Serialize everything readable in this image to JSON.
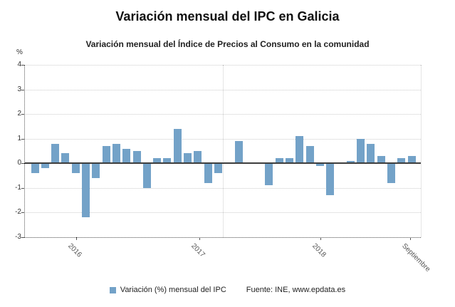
{
  "chart_data": {
    "type": "bar",
    "title": "Variación mensual del IPC en Galicia",
    "subtitle": "Variación mensual del Índice de Precios al Consumo en la comunidad",
    "ylabel": "%",
    "xlabel": "",
    "ylim": [
      -3,
      4
    ],
    "y_ticks": [
      4,
      3,
      2,
      1,
      0,
      -1,
      -2,
      -3
    ],
    "grid": true,
    "legend_position": "bottom",
    "x_tick_labels": [
      "2016",
      "2017",
      "2018",
      "Septiembre"
    ],
    "series": [
      {
        "name": "Variación (%) mensual del IPC",
        "color": "#73a2c8",
        "months": [
          "2015-08",
          "2015-09",
          "2015-10",
          "2015-11",
          "2015-12",
          "2016-01",
          "2016-02",
          "2016-03",
          "2016-04",
          "2016-05",
          "2016-06",
          "2016-07",
          "2016-08",
          "2016-09",
          "2016-10",
          "2016-11",
          "2016-12",
          "2017-01",
          "2017-02",
          "2017-03",
          "2017-04",
          "2017-05",
          "2017-06",
          "2017-07",
          "2017-08",
          "2017-09",
          "2017-10",
          "2017-11",
          "2017-12",
          "2018-01",
          "2018-02",
          "2018-03",
          "2018-04",
          "2018-05",
          "2018-06",
          "2018-07",
          "2018-08",
          "2018-09"
        ],
        "values": [
          -0.4,
          -0.2,
          0.8,
          0.4,
          -0.4,
          -2.2,
          -0.6,
          0.7,
          0.8,
          0.6,
          0.5,
          -1.0,
          0.2,
          0.2,
          1.4,
          0.4,
          0.5,
          -0.8,
          -0.4,
          0.0,
          0.9,
          0.0,
          0.0,
          -0.9,
          0.2,
          0.2,
          1.1,
          0.7,
          -0.1,
          -1.3,
          0.0,
          0.1,
          1.0,
          0.8,
          0.3,
          -0.8,
          0.2,
          0.3
        ]
      }
    ]
  },
  "footer": {
    "source": "Fuente: INE, www.epdata.es"
  }
}
